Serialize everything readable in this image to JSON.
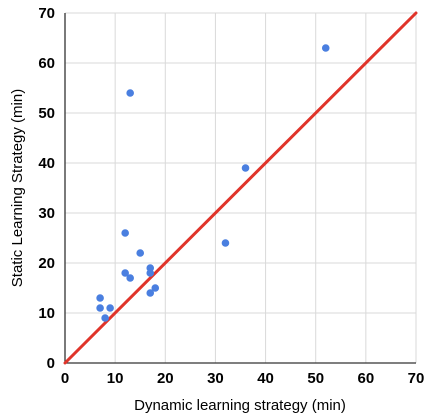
{
  "chart_data": {
    "type": "scatter",
    "title": "",
    "xlabel": "Dynamic learning strategy (min)",
    "ylabel": "Static Learning Strategy (min)",
    "xlim": [
      0,
      70
    ],
    "ylim": [
      0,
      70
    ],
    "xticks": [
      "0",
      "10",
      "20",
      "30",
      "40",
      "50",
      "60",
      "70"
    ],
    "yticks": [
      "0",
      "10",
      "20",
      "30",
      "40",
      "50",
      "60",
      "70"
    ],
    "grid": true,
    "legend": "none",
    "point_color": "#4a7fe0",
    "line_color": "#e0342a",
    "series": [
      {
        "points": [
          [
            7,
            13
          ],
          [
            7,
            11
          ],
          [
            8,
            9
          ],
          [
            9,
            11
          ],
          [
            12,
            26
          ],
          [
            12,
            18
          ],
          [
            13,
            17
          ],
          [
            13,
            54
          ],
          [
            15,
            22
          ],
          [
            17,
            19
          ],
          [
            17,
            18
          ],
          [
            17,
            14
          ],
          [
            18,
            15
          ],
          [
            32,
            24
          ],
          [
            36,
            39
          ],
          [
            52,
            63
          ]
        ]
      }
    ],
    "reference_line": {
      "type": "y=x",
      "from": [
        0,
        0
      ],
      "to": [
        70,
        70
      ]
    }
  }
}
